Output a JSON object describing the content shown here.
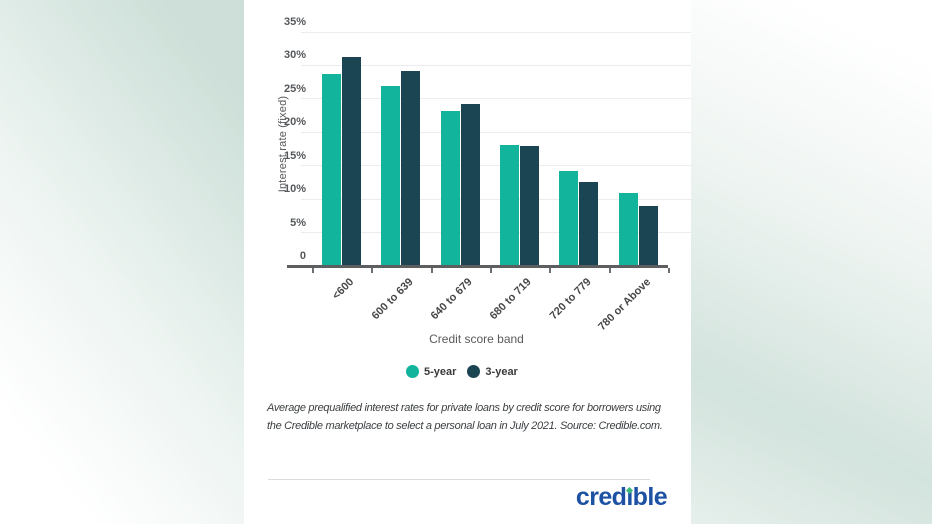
{
  "colors": {
    "card_background": "#ffffff",
    "page_tint": "#cfe0d9",
    "series_5_year": "#12b49c",
    "series_3_year": "#1b4552",
    "axis": "#5c5e60",
    "gridline": "#ececec",
    "logo_blue": "#1d51a3",
    "logo_green": "#3cb878"
  },
  "chart_data": {
    "type": "bar",
    "title": "",
    "xlabel": "Credit score band",
    "ylabel": "Interest rate (fixed)",
    "categories": [
      "<600",
      "600 to 639",
      "640 to 679",
      "680 to 719",
      "720 to 779",
      "780 or Above"
    ],
    "series": [
      {
        "name": "5-year",
        "color": "#12b49c",
        "values": [
          28.7,
          26.9,
          23.2,
          18.1,
          14.2,
          10.9
        ]
      },
      {
        "name": "3-year",
        "color": "#1b4552",
        "values": [
          31.3,
          29.1,
          24.2,
          18.0,
          12.5,
          8.9
        ]
      }
    ],
    "ylim": [
      0,
      35
    ],
    "ytick_step": 5,
    "ytick_labels": [
      "35%",
      "30%",
      "25%",
      "20%",
      "15%",
      "10%",
      "5%",
      "0"
    ],
    "grid": true,
    "legend_position": "bottom"
  },
  "caption": {
    "text": "Average prequalified interest rates for private loans by credit score for borrowers using the Credible marketplace to select a personal loan in July 2021. Source: Credible.com."
  },
  "footer": {
    "logo_text": "credible",
    "logo_before_i": "cred",
    "logo_i": "ı",
    "logo_after_i": "ble"
  }
}
